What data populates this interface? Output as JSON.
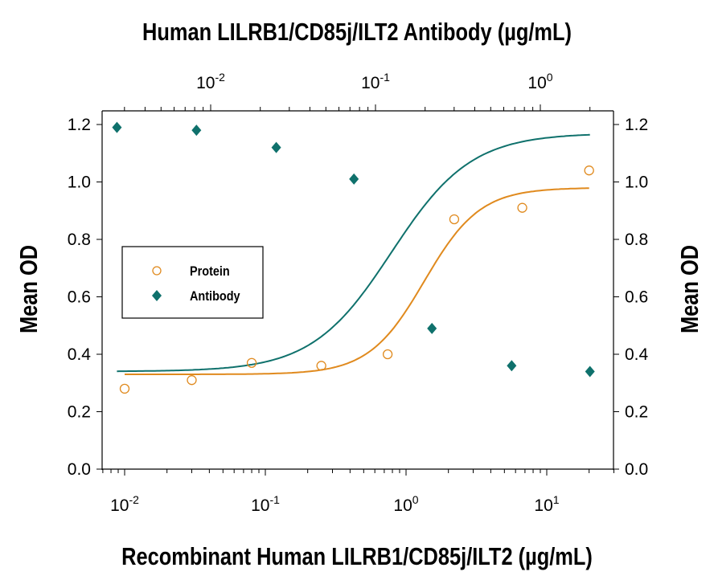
{
  "chart_data": {
    "type": "scatter",
    "title": "Human LILRB1/CD85j/ILT2  Antibody (µg/mL)",
    "xlabel": "Recombinant Human LILRB1/CD85j/ILT2 (µg/mL)",
    "ylabel": "Mean OD",
    "ylabel_right": "Mean OD",
    "x_scale": "log",
    "x_ticks": [
      "10-2",
      "10-1",
      "100",
      "101"
    ],
    "x_top_scale": "log",
    "x_top_ticks": [
      "10-2",
      "10-1",
      "100"
    ],
    "ylim": [
      0,
      1.2
    ],
    "y_ticks": [
      "0.0",
      "0.2",
      "0.4",
      "0.6",
      "0.8",
      "1.0",
      "1.2"
    ],
    "grid": false,
    "legend_position": "center-left",
    "series": [
      {
        "name": "Protein",
        "axis": "bottom",
        "marker": "open-circle",
        "color": "#e08a1e",
        "x": [
          0.01,
          0.03,
          0.08,
          0.25,
          0.74,
          2.2,
          6.7,
          20
        ],
        "y": [
          0.28,
          0.31,
          0.37,
          0.36,
          0.4,
          0.87,
          0.91,
          1.04
        ]
      },
      {
        "name": "Antibody",
        "axis": "top",
        "marker": "filled-diamond",
        "color": "#0f716c",
        "x": [
          0.0027,
          0.0082,
          0.025,
          0.074,
          0.22,
          0.67,
          2.0
        ],
        "y": [
          1.19,
          1.18,
          1.12,
          1.01,
          0.49,
          0.36,
          0.34
        ]
      }
    ]
  }
}
